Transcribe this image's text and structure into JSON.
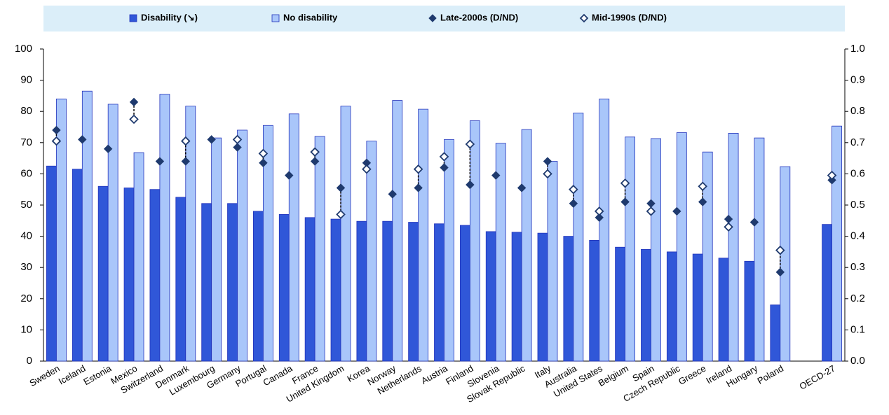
{
  "chart_data": {
    "type": "bar",
    "categories": [
      "Sweden",
      "Iceland",
      "Estonia",
      "Mexico",
      "Switzerland",
      "Denmark",
      "Luxembourg",
      "Germany",
      "Portugal",
      "Canada",
      "France",
      "United Kingdom",
      "Korea",
      "Norway",
      "Netherlands",
      "Austria",
      "Finland",
      "Slovenia",
      "Slovak Republic",
      "Italy",
      "Australia",
      "United States",
      "Belgium",
      "Spain",
      "Czech Republic",
      "Greece",
      "Ireland",
      "Hungary",
      "Poland",
      null,
      "OECD-27"
    ],
    "series": [
      {
        "name": "Disability (↘)",
        "color": "#3057d8",
        "mark": "bar",
        "values": [
          62.5,
          61.5,
          56,
          55.5,
          55,
          52.5,
          50.5,
          50.5,
          48,
          47,
          46,
          45.5,
          44.8,
          44.8,
          44.5,
          44,
          43.5,
          41.5,
          41.3,
          41,
          40,
          38.7,
          36.5,
          35.8,
          35,
          34.3,
          33,
          32,
          18,
          null,
          43.8
        ]
      },
      {
        "name": "No disability",
        "color": "#a9c6fa",
        "mark": "bar",
        "values": [
          84,
          86.5,
          82.3,
          66.8,
          85.5,
          81.7,
          71.5,
          74,
          75.5,
          79.2,
          72,
          81.7,
          70.5,
          83.5,
          80.7,
          71,
          77,
          69.8,
          74.2,
          64,
          79.5,
          84,
          71.8,
          71.3,
          73.2,
          67,
          73,
          71.5,
          62.3,
          null,
          75.3
        ]
      },
      {
        "name": "Late-2000s (D/ND)",
        "color": "#1f3a6e",
        "mark": "diamond-filled",
        "axis": "y2",
        "values": [
          0.74,
          0.71,
          0.68,
          0.83,
          0.64,
          0.64,
          0.71,
          0.685,
          0.635,
          0.595,
          0.64,
          0.555,
          0.635,
          0.535,
          0.555,
          0.62,
          0.565,
          0.595,
          0.555,
          0.64,
          0.505,
          0.46,
          0.51,
          0.505,
          0.48,
          0.51,
          0.455,
          0.445,
          0.285,
          null,
          0.58
        ]
      },
      {
        "name": "Mid-1990s (D/ND)",
        "color": "#1f3a6e",
        "mark": "diamond-open",
        "axis": "y2",
        "values": [
          0.705,
          null,
          null,
          0.775,
          null,
          0.705,
          null,
          0.71,
          0.665,
          null,
          0.67,
          0.47,
          0.615,
          null,
          0.615,
          0.655,
          0.695,
          null,
          null,
          0.6,
          0.55,
          0.48,
          0.57,
          0.48,
          null,
          0.56,
          0.43,
          null,
          0.355,
          null,
          0.595
        ]
      }
    ],
    "ylim": [
      0,
      100
    ],
    "yticks": [
      0,
      10,
      20,
      30,
      40,
      50,
      60,
      70,
      80,
      90,
      100
    ],
    "y2lim": [
      0,
      1
    ],
    "y2ticks": [
      {
        "value": 0,
        "label": "0.0"
      },
      0.1,
      0.2,
      0.3,
      0.4,
      0.5,
      0.6,
      0.7,
      0.8,
      0.9,
      {
        "value": 1,
        "label": "1.0"
      }
    ],
    "legend": "top"
  }
}
